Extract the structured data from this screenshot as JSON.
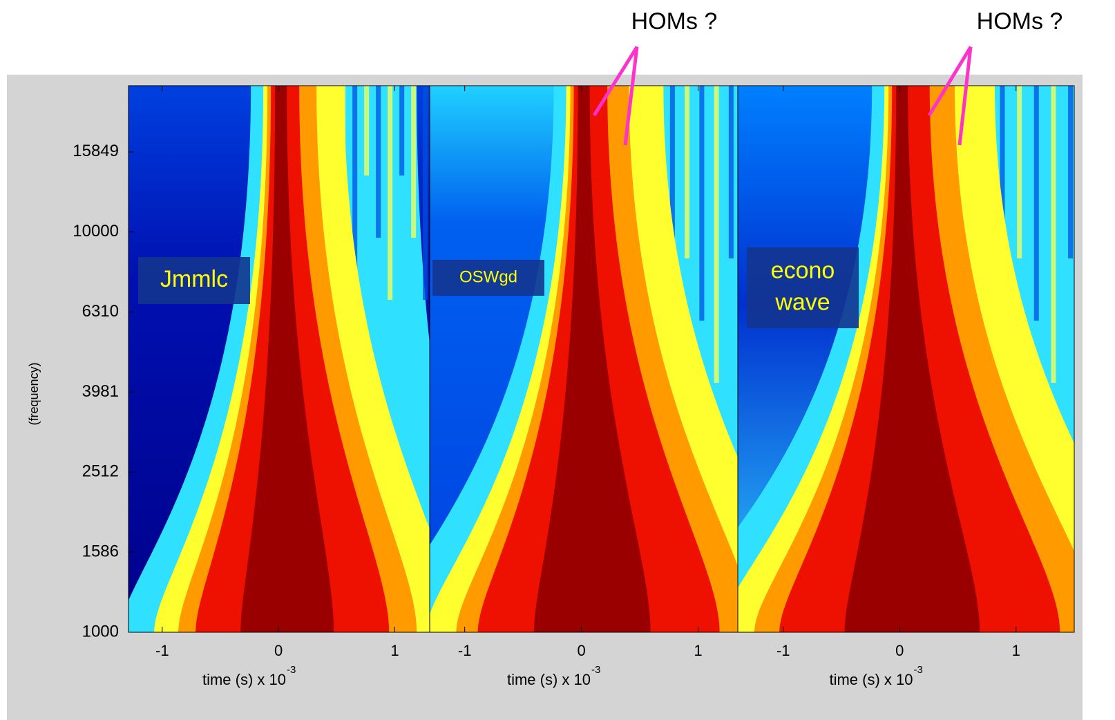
{
  "chart_data": [
    {
      "type": "heatmap",
      "panel_label": [
        "Jmmlc"
      ],
      "ylabel": "(frequency)",
      "log_y": true,
      "ylim": [
        1000,
        23200
      ],
      "yticks": [
        1000,
        1586,
        2512,
        3981,
        6310,
        10000,
        15849
      ],
      "xlim": [
        -1.29,
        1.3
      ],
      "xticks": [
        -1,
        0,
        1
      ],
      "xlabel": "time (s)  x 10",
      "xlabel_exponent": "-3"
    },
    {
      "type": "heatmap",
      "panel_label": [
        "OSWgd"
      ],
      "annotation": "HOMs ?",
      "log_y": true,
      "ylim": [
        1000,
        23200
      ],
      "xlim": [
        -1.3,
        1.34
      ],
      "xticks": [
        -1,
        0,
        1
      ],
      "xlabel": "time (s)  x 10",
      "xlabel_exponent": "-3"
    },
    {
      "type": "heatmap",
      "panel_label": [
        "econo",
        "wave"
      ],
      "annotation": "HOMs ?",
      "log_y": true,
      "ylim": [
        1000,
        23200
      ],
      "xlim": [
        -1.39,
        1.5
      ],
      "xticks": [
        -1,
        0,
        1
      ],
      "xlabel": "time (s)  x 10",
      "xlabel_exponent": "-3"
    }
  ]
}
